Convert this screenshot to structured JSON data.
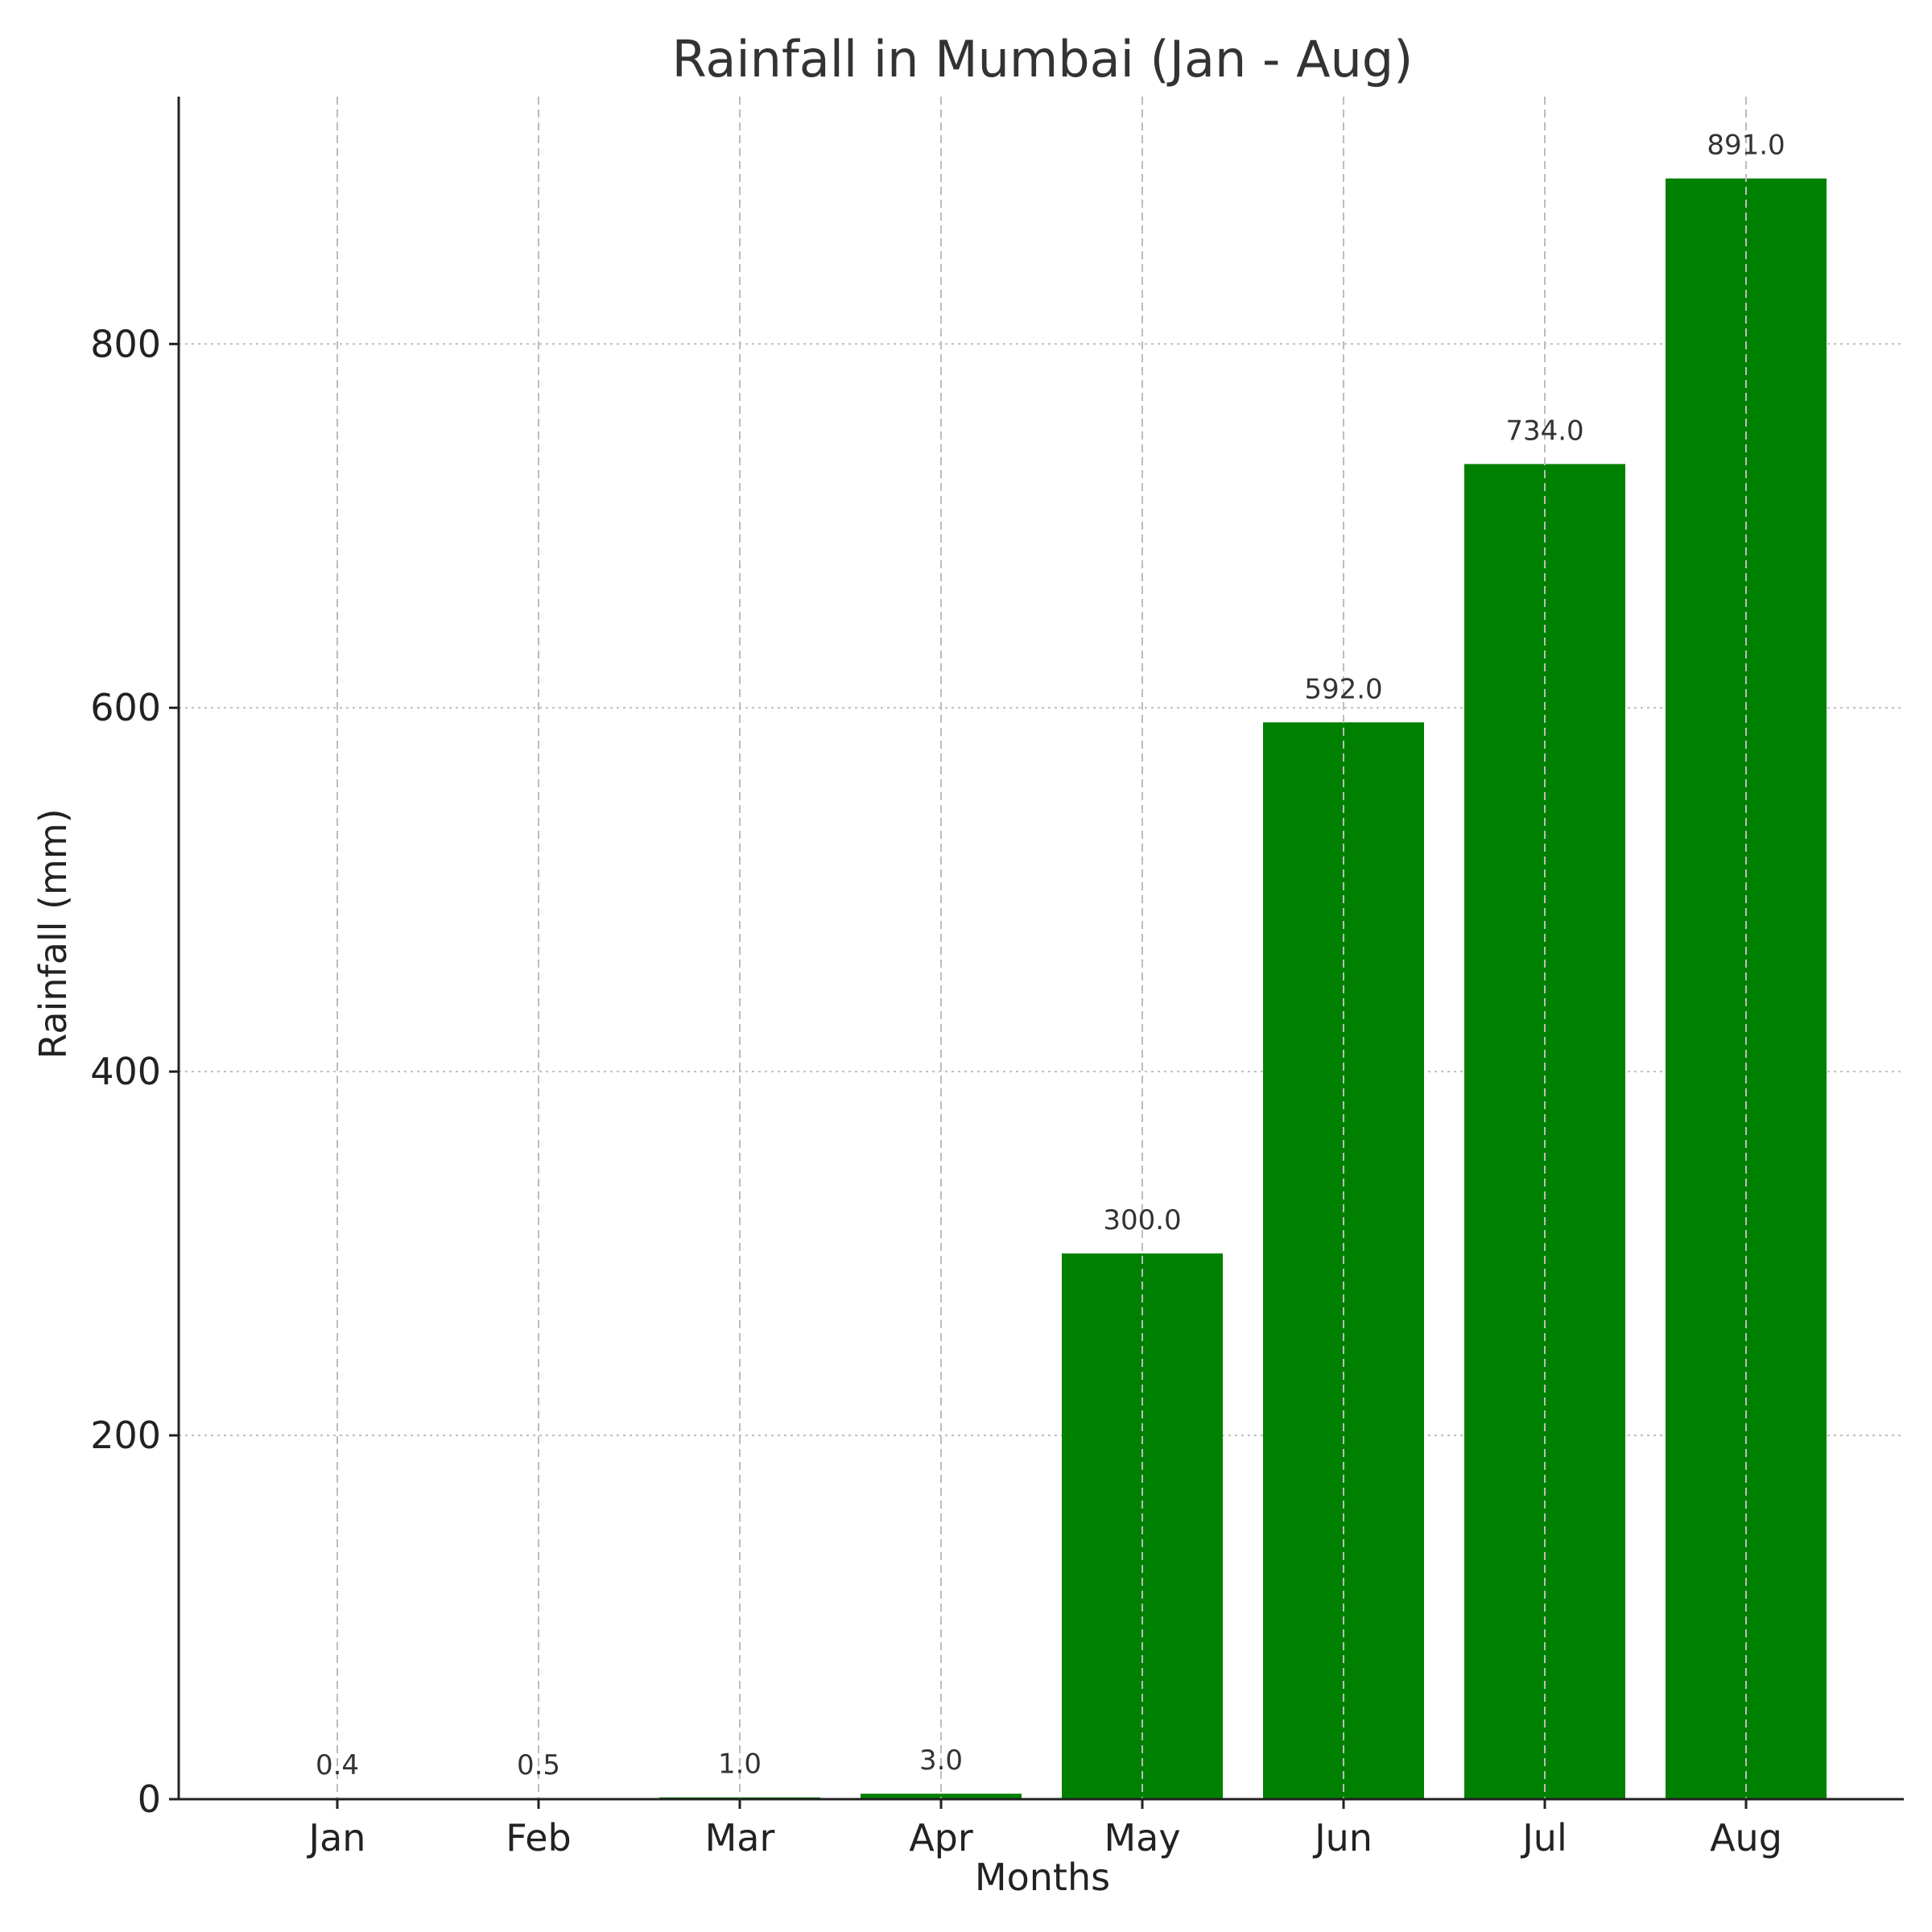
{
  "chart_data": {
    "type": "bar",
    "title": "Rainfall in Mumbai (Jan - Aug)",
    "xlabel": "Months",
    "ylabel": "Rainfall (mm)",
    "categories": [
      "Jan",
      "Feb",
      "Mar",
      "Apr",
      "May",
      "Jun",
      "Jul",
      "Aug"
    ],
    "values": [
      0.4,
      0.5,
      1.0,
      3.0,
      300.0,
      592.0,
      734.0,
      891.0
    ],
    "data_labels": [
      "0.4",
      "0.5",
      "1.0",
      "3.0",
      "300.0",
      "592.0",
      "734.0",
      "891.0"
    ],
    "ylim": [
      0,
      936
    ],
    "yticks": [
      0,
      200,
      400,
      600,
      800
    ],
    "ytick_labels": [
      "0",
      "200",
      "400",
      "600",
      "800"
    ],
    "grid": true,
    "bar_color": "#008000"
  }
}
